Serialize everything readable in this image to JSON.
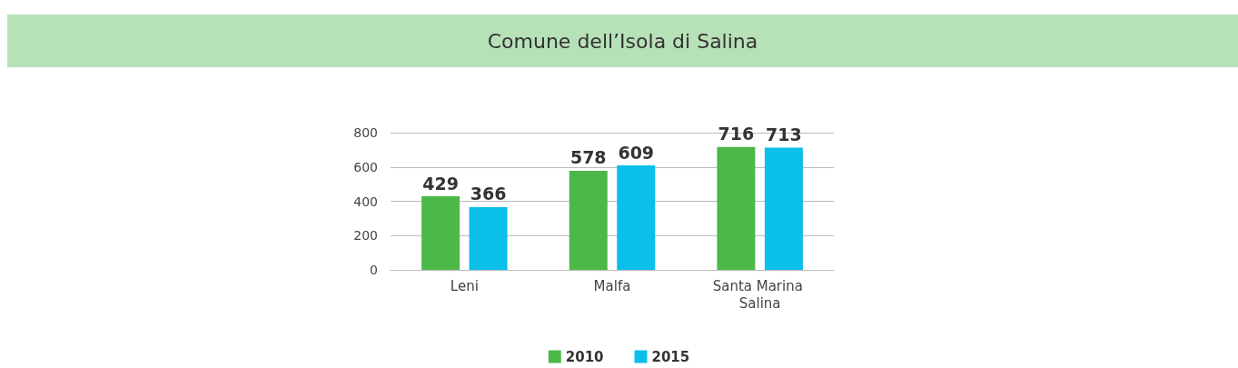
{
  "chart_data": {
    "type": "bar",
    "title": "Comune dell’Isola di Salina",
    "categories": [
      "Leni",
      "Malfa",
      "Santa Marina Salina"
    ],
    "series": [
      {
        "name": "2010",
        "color": "#4cb848",
        "values": [
          429,
          578,
          716
        ]
      },
      {
        "name": "2015",
        "color": "#0bbfeb",
        "values": [
          366,
          609,
          713
        ]
      }
    ],
    "ylim": [
      0,
      800
    ],
    "yticks": [
      0,
      200,
      400,
      600,
      800
    ],
    "grid": "y",
    "legend": "bottom",
    "data_labels": true
  }
}
